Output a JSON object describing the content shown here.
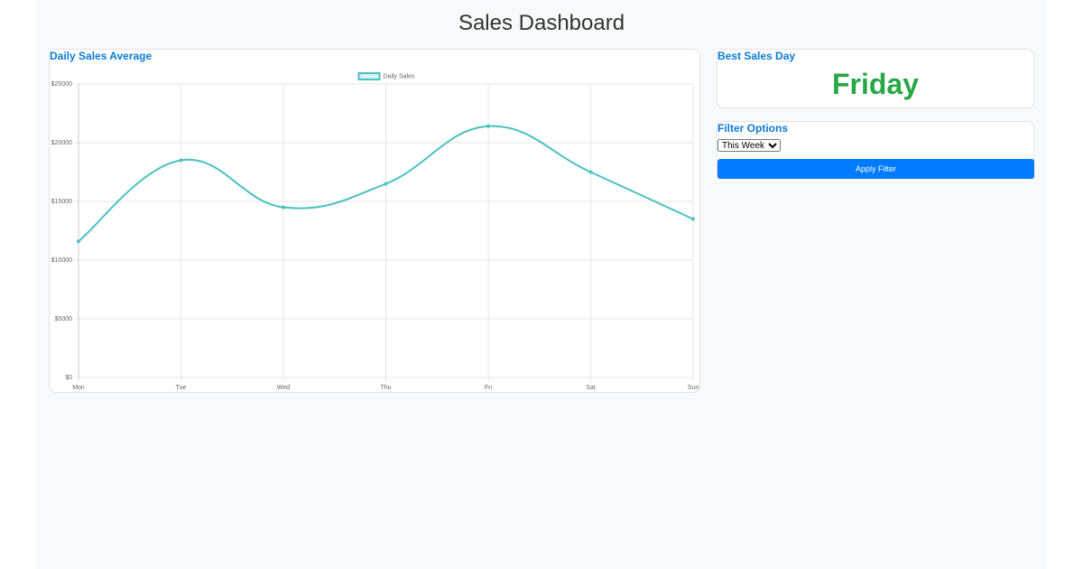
{
  "header": {
    "title": "Sales Dashboard"
  },
  "chart_card": {
    "title": "Daily Sales Average"
  },
  "chart_data": {
    "type": "line",
    "categories": [
      "Mon",
      "Tue",
      "Wed",
      "Thu",
      "Fri",
      "Sat",
      "Sun"
    ],
    "series": [
      {
        "name": "Daily Sales",
        "color": "#4bc0c0",
        "values": [
          11600,
          18500,
          14500,
          16500,
          21400,
          17500,
          13500
        ]
      }
    ],
    "ylim": [
      0,
      25000
    ],
    "yticks": [
      {
        "value": 0,
        "label": "$0"
      },
      {
        "value": 5000,
        "label": "$5000"
      },
      {
        "value": 10000,
        "label": "$10000"
      },
      {
        "value": 15000,
        "label": "$15000"
      },
      {
        "value": 20000,
        "label": "$20000"
      },
      {
        "value": 25000,
        "label": "$25000"
      }
    ],
    "grid": true,
    "legend": "top"
  },
  "best_day": {
    "title": "Best Sales Day",
    "value": "Friday"
  },
  "filter": {
    "title": "Filter Options",
    "options": [
      "This Week"
    ],
    "button": "Apply Filter"
  }
}
